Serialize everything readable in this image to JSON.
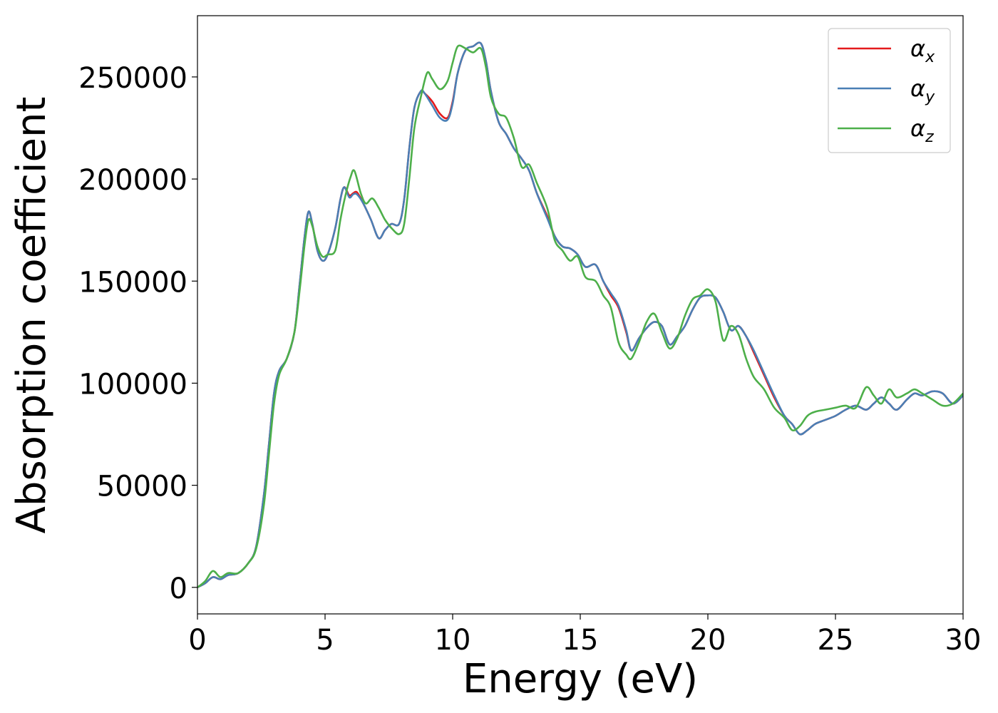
{
  "chart_data": {
    "type": "line",
    "title": "",
    "xlabel": "Energy (eV)",
    "ylabel": "Absorption coefficient",
    "xlim": [
      0,
      30
    ],
    "ylim": [
      -13000,
      280000
    ],
    "xticks": [
      0,
      5,
      10,
      15,
      20,
      25,
      30
    ],
    "xtick_labels": [
      "0",
      "5",
      "10",
      "15",
      "20",
      "25",
      "30"
    ],
    "yticks": [
      0,
      50000,
      100000,
      150000,
      200000,
      250000
    ],
    "ytick_labels": [
      "0",
      "50000",
      "100000",
      "150000",
      "200000",
      "250000"
    ],
    "grid": false,
    "legend_position": "top-right",
    "series": [
      {
        "name": "α",
        "subscript": "x",
        "color": "#e41a1c",
        "x": [
          0,
          0.3,
          0.6,
          0.9,
          1.2,
          1.6,
          2.0,
          2.3,
          2.6,
          2.8,
          3.0,
          3.2,
          3.5,
          3.8,
          4.0,
          4.2,
          4.35,
          4.5,
          4.7,
          4.9,
          5.1,
          5.4,
          5.6,
          5.75,
          5.95,
          6.1,
          6.25,
          6.5,
          6.8,
          7.1,
          7.35,
          7.6,
          7.9,
          8.1,
          8.3,
          8.5,
          8.75,
          8.9,
          9.2,
          9.5,
          9.8,
          10.0,
          10.2,
          10.5,
          10.8,
          11.1,
          11.3,
          11.5,
          11.8,
          12.1,
          12.4,
          12.7,
          13.0,
          13.3,
          13.7,
          14.0,
          14.3,
          14.6,
          14.9,
          15.2,
          15.6,
          15.9,
          16.2,
          16.5,
          16.8,
          17.0,
          17.3,
          17.6,
          17.9,
          18.2,
          18.5,
          18.8,
          19.1,
          19.4,
          19.7,
          20.0,
          20.3,
          20.6,
          20.9,
          21.2,
          21.5,
          21.8,
          22.2,
          22.6,
          23.0,
          23.3,
          23.6,
          23.9,
          24.2,
          24.6,
          25.0,
          25.4,
          25.8,
          26.2,
          26.5,
          26.8,
          27.1,
          27.4,
          27.8,
          28.1,
          28.4,
          28.8,
          29.2,
          29.6,
          30.0
        ],
        "values": [
          0,
          2000,
          5000,
          4000,
          6000,
          7000,
          12000,
          20000,
          45000,
          70000,
          95000,
          106000,
          112000,
          125000,
          148000,
          172000,
          184000,
          178000,
          165000,
          160000,
          163000,
          176000,
          190000,
          196000,
          192000,
          193000,
          193500,
          188000,
          180000,
          171000,
          175000,
          178000,
          178000,
          190000,
          215000,
          235000,
          243000,
          242000,
          238000,
          232000,
          230000,
          238000,
          252000,
          263000,
          265000,
          266500,
          258000,
          243000,
          228000,
          222000,
          215000,
          210000,
          204000,
          193000,
          182000,
          172000,
          167000,
          166000,
          163000,
          157000,
          158000,
          150000,
          143000,
          137000,
          125000,
          116000,
          122000,
          127000,
          130000,
          128000,
          119000,
          123000,
          128000,
          136000,
          142000,
          143000,
          142000,
          135000,
          126000,
          128000,
          123000,
          115000,
          104000,
          93000,
          84000,
          80000,
          75000,
          77000,
          80000,
          82000,
          84000,
          87000,
          89000,
          87000,
          90000,
          93000,
          90000,
          87000,
          92000,
          95000,
          94000,
          96000,
          95000,
          90000,
          94000
        ]
      },
      {
        "name": "α",
        "subscript": "y",
        "color": "#4a7fb5",
        "x": [
          0,
          0.3,
          0.6,
          0.9,
          1.2,
          1.6,
          2.0,
          2.3,
          2.6,
          2.8,
          3.0,
          3.2,
          3.5,
          3.8,
          4.0,
          4.2,
          4.35,
          4.5,
          4.7,
          4.9,
          5.1,
          5.4,
          5.6,
          5.75,
          5.95,
          6.1,
          6.25,
          6.5,
          6.8,
          7.1,
          7.35,
          7.6,
          7.9,
          8.1,
          8.3,
          8.5,
          8.75,
          8.9,
          9.2,
          9.5,
          9.8,
          10.0,
          10.2,
          10.5,
          10.8,
          11.1,
          11.3,
          11.5,
          11.8,
          12.1,
          12.4,
          12.7,
          13.0,
          13.3,
          13.7,
          14.0,
          14.3,
          14.6,
          14.9,
          15.2,
          15.6,
          15.9,
          16.2,
          16.5,
          16.8,
          17.0,
          17.3,
          17.6,
          17.9,
          18.2,
          18.5,
          18.8,
          19.1,
          19.4,
          19.7,
          20.0,
          20.3,
          20.6,
          20.9,
          21.2,
          21.5,
          21.8,
          22.2,
          22.6,
          23.0,
          23.3,
          23.6,
          23.9,
          24.2,
          24.6,
          25.0,
          25.4,
          25.8,
          26.2,
          26.5,
          26.8,
          27.1,
          27.4,
          27.8,
          28.1,
          28.4,
          28.8,
          29.2,
          29.6,
          30.0
        ],
        "values": [
          0,
          2000,
          5000,
          4000,
          6000,
          7000,
          12000,
          20000,
          45000,
          70000,
          95000,
          106000,
          112000,
          125000,
          148000,
          172000,
          184000,
          178000,
          165000,
          160000,
          163000,
          176000,
          190000,
          196000,
          191000,
          192500,
          192500,
          188000,
          180000,
          171000,
          175000,
          178000,
          178000,
          190000,
          215000,
          235000,
          243000,
          242000,
          236000,
          230000,
          229000,
          237000,
          252000,
          263000,
          265000,
          266500,
          258000,
          243000,
          228000,
          222000,
          215000,
          210000,
          204000,
          193000,
          181000,
          172000,
          167000,
          166000,
          163000,
          157000,
          158000,
          150000,
          144000,
          138000,
          126000,
          116000,
          122000,
          127000,
          130000,
          128000,
          119000,
          123000,
          128000,
          136000,
          142000,
          143000,
          142000,
          135000,
          126000,
          128000,
          123000,
          116000,
          105000,
          94000,
          84000,
          80000,
          75000,
          77000,
          80000,
          82000,
          84000,
          87000,
          89000,
          87000,
          90000,
          93000,
          90000,
          87000,
          92000,
          95000,
          94000,
          96000,
          95000,
          90000,
          94000
        ]
      },
      {
        "name": "α",
        "subscript": "z",
        "color": "#4daf4a",
        "x": [
          0,
          0.3,
          0.6,
          0.9,
          1.2,
          1.6,
          2.0,
          2.3,
          2.6,
          2.8,
          3.0,
          3.2,
          3.5,
          3.8,
          4.0,
          4.2,
          4.35,
          4.5,
          4.7,
          4.9,
          5.1,
          5.4,
          5.6,
          5.8,
          6.0,
          6.15,
          6.4,
          6.6,
          6.85,
          7.1,
          7.35,
          7.6,
          7.9,
          8.1,
          8.3,
          8.5,
          8.75,
          9.0,
          9.2,
          9.5,
          9.8,
          10.0,
          10.2,
          10.5,
          10.8,
          11.1,
          11.3,
          11.5,
          11.8,
          12.1,
          12.4,
          12.7,
          13.0,
          13.3,
          13.7,
          14.0,
          14.3,
          14.6,
          14.9,
          15.2,
          15.6,
          15.9,
          16.2,
          16.5,
          16.8,
          17.0,
          17.3,
          17.6,
          17.9,
          18.2,
          18.5,
          18.8,
          19.1,
          19.4,
          19.7,
          20.0,
          20.3,
          20.6,
          20.9,
          21.2,
          21.5,
          21.8,
          22.2,
          22.6,
          23.0,
          23.3,
          23.6,
          23.9,
          24.2,
          24.6,
          25.0,
          25.4,
          25.8,
          26.2,
          26.5,
          26.8,
          27.1,
          27.4,
          27.8,
          28.1,
          28.4,
          28.8,
          29.2,
          29.6,
          30.0
        ],
        "values": [
          0,
          3000,
          8000,
          5000,
          7000,
          7000,
          12000,
          19000,
          40000,
          65000,
          90000,
          104000,
          112000,
          125000,
          145000,
          168000,
          180000,
          177000,
          167000,
          162000,
          163000,
          165000,
          180000,
          192000,
          201000,
          204000,
          193000,
          188000,
          190500,
          186000,
          180000,
          176000,
          173000,
          178000,
          200000,
          225000,
          240000,
          252000,
          249000,
          244000,
          248000,
          257000,
          265000,
          264000,
          262000,
          264000,
          255000,
          240000,
          232000,
          230000,
          220000,
          206000,
          207000,
          198000,
          186000,
          170000,
          165000,
          160000,
          162000,
          152000,
          150000,
          143000,
          137000,
          120000,
          114000,
          112000,
          120000,
          130000,
          134000,
          125000,
          117000,
          122000,
          133000,
          141000,
          143000,
          146000,
          140000,
          121000,
          128000,
          124000,
          112000,
          103000,
          97000,
          88000,
          83000,
          77000,
          79000,
          84000,
          86000,
          87000,
          88000,
          89000,
          88000,
          98000,
          94000,
          90000,
          97000,
          93000,
          95000,
          97000,
          95000,
          92000,
          89000,
          90000,
          95000
        ]
      }
    ]
  }
}
